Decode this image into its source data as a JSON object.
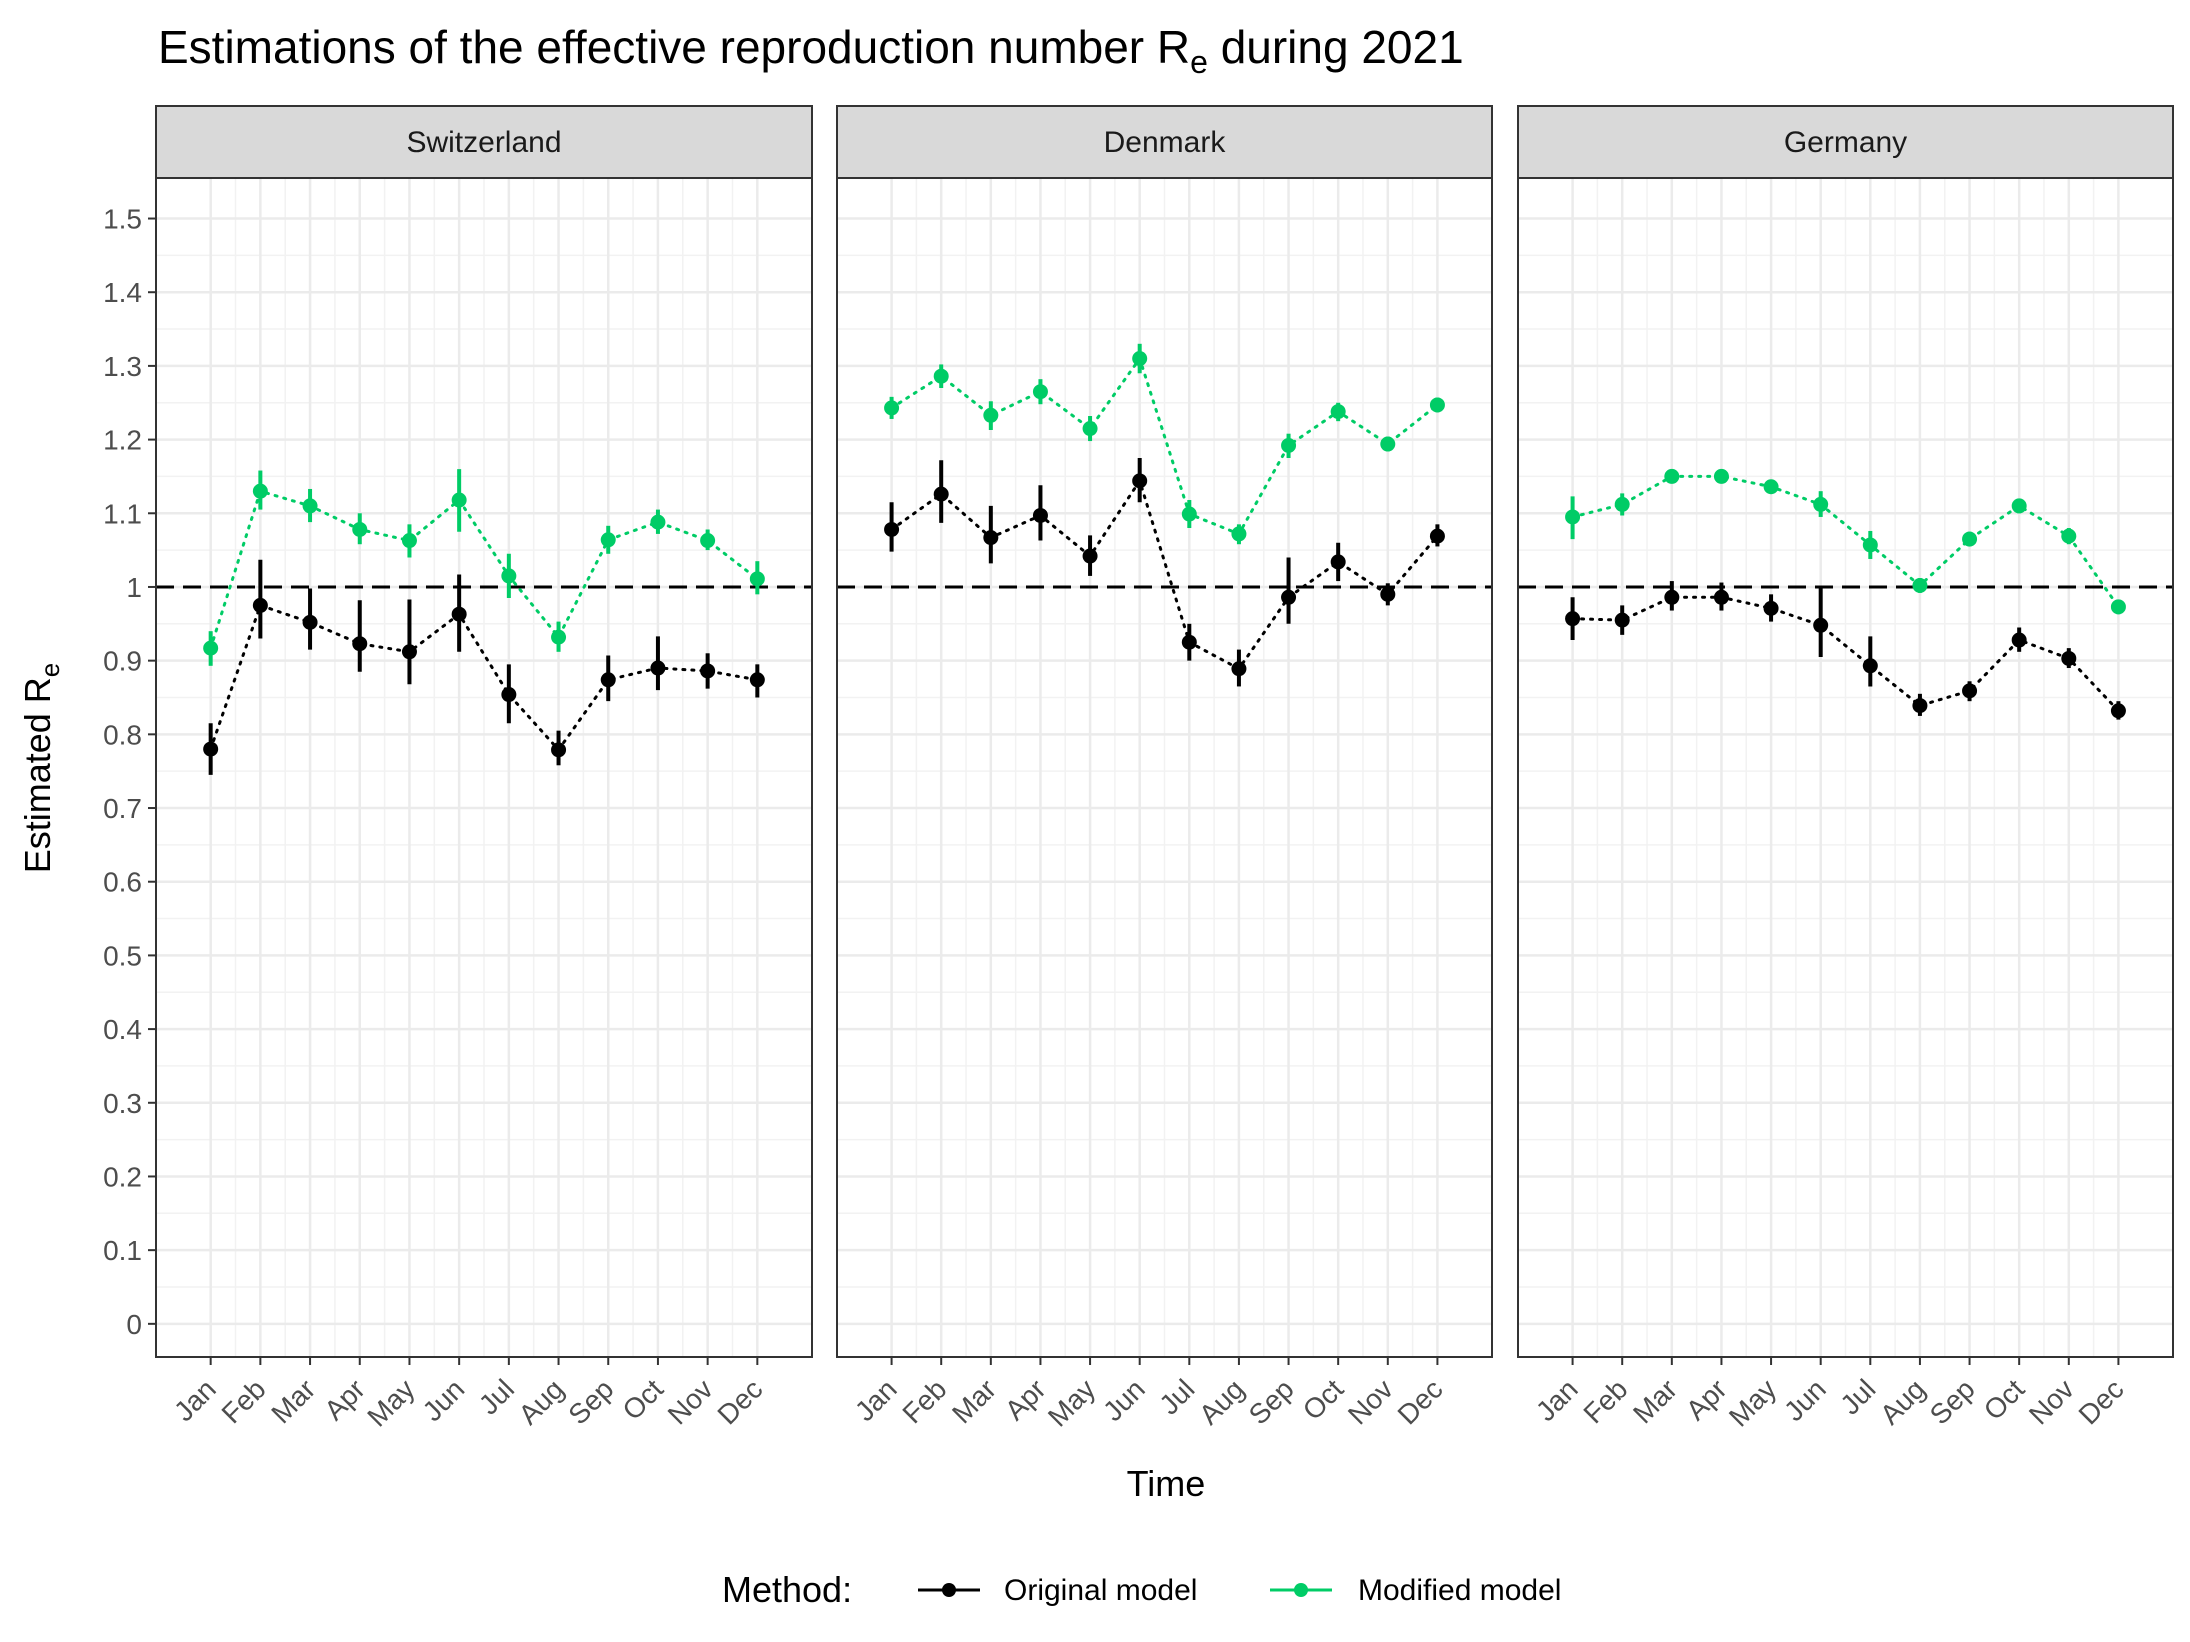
{
  "chart_data": {
    "type": "line",
    "title": "Estimations of the effective reproduction number R",
    "title_subscript": "e",
    "title_suffix": " during 2021",
    "xlabel": "Time",
    "ylabel": "Estimated R",
    "ylabel_subscript": "e",
    "x_categories": [
      "Jan",
      "Feb",
      "Mar",
      "Apr",
      "May",
      "Jun",
      "Jul",
      "Aug",
      "Sep",
      "Oct",
      "Nov",
      "Dec"
    ],
    "ylim": [
      -0.045,
      1.555
    ],
    "y_ticks": [
      "0",
      "0.1",
      "0.2",
      "0.3",
      "0.4",
      "0.5",
      "0.6",
      "0.7",
      "0.8",
      "0.9",
      "1",
      "1.1",
      "1.2",
      "1.3",
      "1.4",
      "1.5"
    ],
    "y_tick_values": [
      0,
      0.1,
      0.2,
      0.3,
      0.4,
      0.5,
      0.6,
      0.7,
      0.8,
      0.9,
      1,
      1.1,
      1.2,
      1.3,
      1.4,
      1.5
    ],
    "reference_line": 1,
    "grid": true,
    "legend_position": "bottom",
    "legend_title": "Method:",
    "series_styles": [
      {
        "name": "Original model",
        "color": "#000000"
      },
      {
        "name": "Modified model",
        "color": "#00cc66"
      }
    ],
    "panels": [
      {
        "name": "Switzerland",
        "series": [
          {
            "name": "Original model",
            "values": [
              0.78,
              0.975,
              0.952,
              0.923,
              0.912,
              0.963,
              0.854,
              0.779,
              0.874,
              0.89,
              0.886,
              0.874
            ],
            "lower": [
              0.745,
              0.93,
              0.915,
              0.885,
              0.868,
              0.912,
              0.815,
              0.758,
              0.845,
              0.86,
              0.862,
              0.85
            ],
            "upper": [
              0.815,
              1.037,
              0.998,
              0.982,
              0.983,
              1.017,
              0.895,
              0.805,
              0.907,
              0.933,
              0.91,
              0.895
            ]
          },
          {
            "name": "Modified model",
            "values": [
              0.917,
              1.13,
              1.11,
              1.078,
              1.063,
              1.118,
              1.015,
              0.932,
              1.064,
              1.088,
              1.063,
              1.011
            ],
            "lower": [
              0.893,
              1.105,
              1.088,
              1.058,
              1.04,
              1.075,
              0.985,
              0.912,
              1.045,
              1.072,
              1.05,
              0.99
            ],
            "upper": [
              0.94,
              1.158,
              1.133,
              1.1,
              1.085,
              1.16,
              1.045,
              0.953,
              1.083,
              1.105,
              1.078,
              1.035
            ]
          }
        ]
      },
      {
        "name": "Denmark",
        "series": [
          {
            "name": "Original model",
            "values": [
              1.078,
              1.126,
              1.067,
              1.097,
              1.042,
              1.144,
              0.925,
              0.889,
              0.986,
              1.034,
              0.99,
              1.069
            ],
            "lower": [
              1.048,
              1.087,
              1.032,
              1.063,
              1.015,
              1.115,
              0.9,
              0.865,
              0.95,
              1.008,
              0.975,
              1.055
            ],
            "upper": [
              1.115,
              1.172,
              1.11,
              1.138,
              1.07,
              1.175,
              0.95,
              0.915,
              1.04,
              1.06,
              1.005,
              1.085
            ]
          },
          {
            "name": "Modified model",
            "values": [
              1.243,
              1.286,
              1.233,
              1.265,
              1.215,
              1.31,
              1.099,
              1.072,
              1.192,
              1.238,
              1.194,
              1.247
            ],
            "lower": [
              1.228,
              1.27,
              1.213,
              1.248,
              1.198,
              1.29,
              1.08,
              1.058,
              1.175,
              1.225,
              1.184,
              1.237
            ],
            "upper": [
              1.258,
              1.302,
              1.252,
              1.282,
              1.232,
              1.33,
              1.118,
              1.085,
              1.208,
              1.25,
              1.204,
              1.257
            ]
          }
        ]
      },
      {
        "name": "Germany",
        "series": [
          {
            "name": "Original model",
            "values": [
              0.957,
              0.955,
              0.986,
              0.986,
              0.971,
              0.948,
              0.893,
              0.839,
              0.859,
              0.928,
              0.903,
              0.832
            ],
            "lower": [
              0.928,
              0.935,
              0.968,
              0.968,
              0.953,
              0.905,
              0.865,
              0.825,
              0.845,
              0.912,
              0.89,
              0.82
            ],
            "upper": [
              0.986,
              0.975,
              1.008,
              1.006,
              0.99,
              1.0,
              0.933,
              0.855,
              0.872,
              0.945,
              0.917,
              0.845
            ]
          },
          {
            "name": "Modified model",
            "values": [
              1.095,
              1.112,
              1.15,
              1.15,
              1.136,
              1.112,
              1.057,
              1.002,
              1.065,
              1.11,
              1.069,
              0.973
            ],
            "lower": [
              1.065,
              1.097,
              1.142,
              1.142,
              1.128,
              1.095,
              1.038,
              0.992,
              1.055,
              1.1,
              1.058,
              0.963
            ],
            "upper": [
              1.123,
              1.127,
              1.158,
              1.158,
              1.144,
              1.13,
              1.076,
              1.012,
              1.075,
              1.12,
              1.08,
              0.983
            ]
          }
        ]
      }
    ]
  }
}
